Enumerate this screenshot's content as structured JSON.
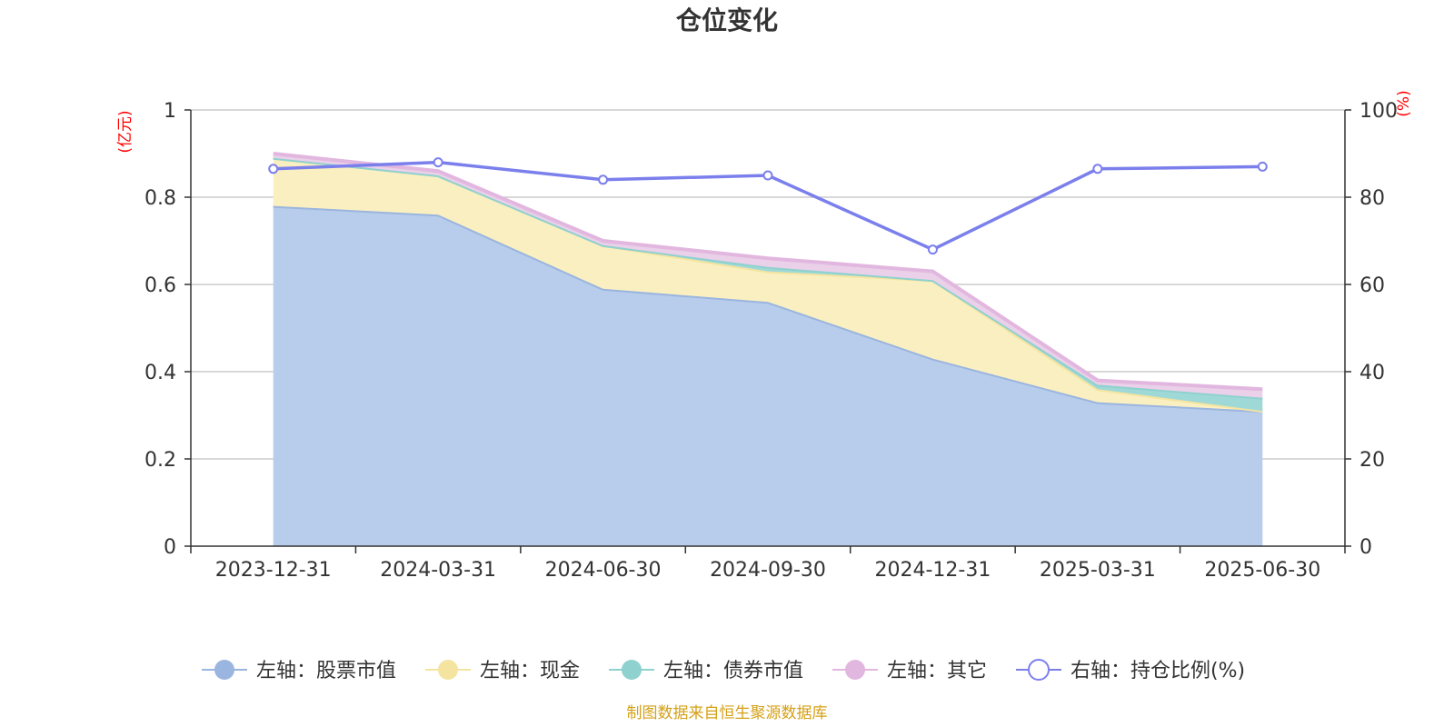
{
  "chart_data": {
    "type": "area",
    "title": "仓位变化",
    "categories": [
      "2023-12-31",
      "2024-03-31",
      "2024-06-30",
      "2024-09-30",
      "2024-12-31",
      "2025-03-31",
      "2025-06-30"
    ],
    "left_axis": {
      "unit": "(亿元)",
      "ylim": [
        0,
        1
      ],
      "ticks": [
        "0",
        "0.2",
        "0.4",
        "0.6",
        "0.8",
        "1"
      ]
    },
    "right_axis": {
      "unit": "(%)",
      "ylim": [
        0,
        100
      ],
      "ticks": [
        "0",
        "20",
        "40",
        "60",
        "80",
        "100"
      ]
    },
    "stacked_series": [
      {
        "name": "左轴：股票市值",
        "fill": "#b8cceb",
        "line": "#9ab5df",
        "values": [
          0.78,
          0.76,
          0.59,
          0.56,
          0.43,
          0.33,
          0.31
        ]
      },
      {
        "name": "左轴：现金",
        "fill": "#faefc0",
        "line": "#f5e4a0",
        "values": [
          0.11,
          0.09,
          0.1,
          0.07,
          0.18,
          0.03,
          0.0
        ]
      },
      {
        "name": "左轴：债券市值",
        "fill": "#9fd9d7",
        "line": "#8fd1ce",
        "values": [
          0.0,
          0.0,
          0.0,
          0.01,
          0.0,
          0.01,
          0.03
        ]
      },
      {
        "name": "左轴：其它",
        "fill": "#ead0e9",
        "line": "#e2b7df",
        "values": [
          0.01,
          0.01,
          0.01,
          0.02,
          0.02,
          0.01,
          0.02
        ]
      }
    ],
    "line_series": {
      "name": "右轴：持仓比例(%)",
      "color": "#7b7fec",
      "values": [
        86.5,
        88.0,
        84.0,
        85.0,
        68.0,
        86.5,
        87.0
      ]
    },
    "grid": true,
    "legend_position": "bottom"
  },
  "footer": "制图数据来自恒生聚源数据库"
}
